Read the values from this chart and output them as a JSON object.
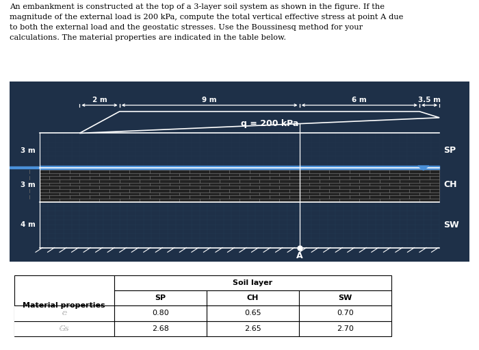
{
  "fig_width": 7.0,
  "fig_height": 5.11,
  "dpi": 100,
  "text_intro": "An embankment is constructed at the top of a 3-layer soil system as shown in the figure. If the\nmagnitude of the external load is 200 kPa, compute the total vertical effective stress at point A due\nto both the external load and the geostatic stresses. Use the Boussinesq method for your\ncalculations. The material properties are indicated in the table below.",
  "bg_color": "#1e3048",
  "grid_color": "#243a52",
  "ch_bg_color": "#222222",
  "water_table_color": "#4a90d9",
  "triangle_color": "#4a90d9",
  "white": "#ffffff",
  "q_label": "q = 200 kPa",
  "dim_2m": "2 m",
  "dim_9m": "9 m",
  "dim_6m": "6 m",
  "dim_35m": "3.5 m",
  "label_3m_sp": "3 m",
  "label_3m_ch": "3 m",
  "label_4m_sw": "4 m",
  "label_SP": "SP",
  "label_CH": "CH",
  "label_SW": "SW",
  "label_A": "A",
  "table_header": "Soil layer",
  "mat_prop": "Material properties",
  "col_SP": "SP",
  "col_CH": "CH",
  "col_SW": "SW",
  "row_e": "e",
  "row_Gs": "Gs",
  "val_e_SP": "0.80",
  "val_e_CH": "0.65",
  "val_e_SW": "0.70",
  "val_Gs_SP": "2.68",
  "val_Gs_CH": "2.65",
  "val_Gs_SW": "2.70"
}
